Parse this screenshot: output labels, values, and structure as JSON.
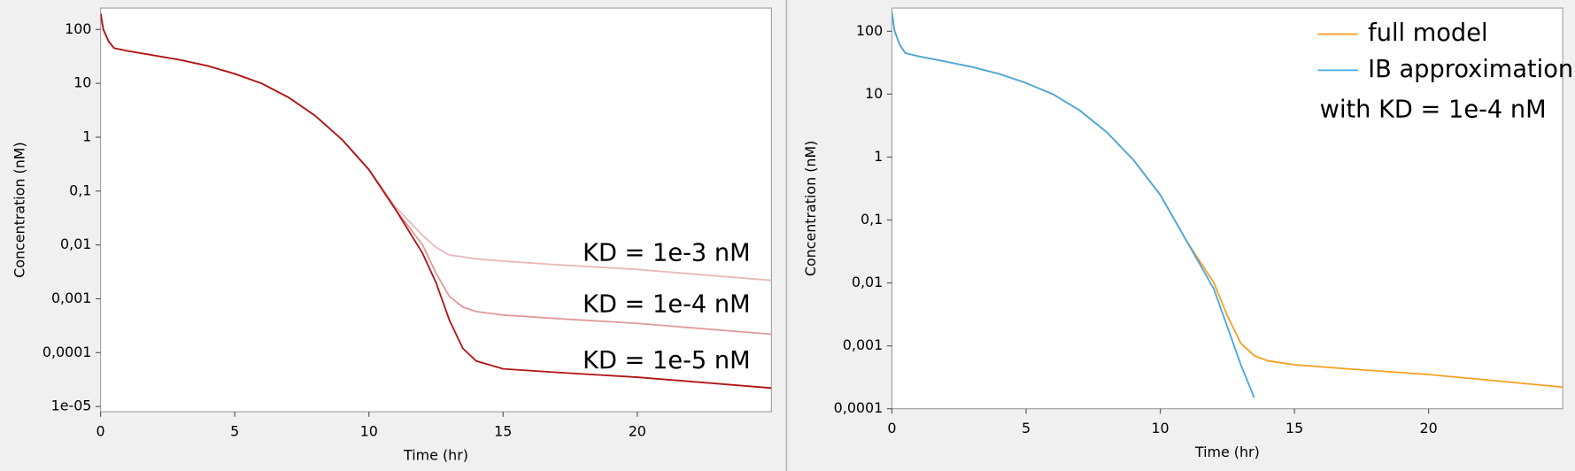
{
  "chart_data": [
    {
      "type": "line",
      "log_y": true,
      "xlabel": "Time (hr)",
      "ylabel": "Concentration (nM)",
      "x": [
        0,
        0.1,
        0.3,
        0.5,
        1,
        2,
        3,
        4,
        5,
        6,
        7,
        8,
        9,
        10,
        11,
        12,
        12.5,
        13,
        13.5,
        14,
        15,
        17,
        20,
        25
      ],
      "series": [
        {
          "name": "KD = 1e-3 nM",
          "color": "#e8b8b8",
          "values": [
            200,
            100,
            60,
            45,
            40,
            33,
            27,
            21,
            15,
            10,
            5.5,
            2.5,
            0.9,
            0.25,
            0.05,
            0.015,
            0.009,
            0.0065,
            0.006,
            0.0055,
            0.005,
            0.0043,
            0.0035,
            0.0022
          ]
        },
        {
          "name": "KD = 1e-4 nM",
          "color": "#e09a9a",
          "values": [
            200,
            100,
            60,
            45,
            40,
            33,
            27,
            21,
            15,
            10,
            5.5,
            2.5,
            0.9,
            0.25,
            0.045,
            0.01,
            0.003,
            0.0011,
            0.0007,
            0.00058,
            0.0005,
            0.00043,
            0.00035,
            0.00022
          ]
        },
        {
          "name": "KD = 1e-5 nM",
          "color": "#b01414",
          "values": [
            200,
            100,
            60,
            45,
            40,
            33,
            27,
            21,
            15,
            10,
            5.5,
            2.5,
            0.9,
            0.25,
            0.045,
            0.007,
            0.002,
            0.0004,
            0.00012,
            7e-05,
            5e-05,
            4.3e-05,
            3.5e-05,
            2.2e-05
          ]
        }
      ],
      "xlim": [
        0,
        25
      ],
      "xticks": [
        0,
        5,
        10,
        15,
        20
      ],
      "ylim": [
        8e-06,
        250
      ],
      "yticks": [
        100,
        10,
        1,
        {
          "value": 0.1,
          "label": "0,1"
        },
        {
          "value": 0.01,
          "label": "0,01"
        },
        {
          "value": 0.001,
          "label": "0,001"
        },
        {
          "value": 0.0001,
          "label": "0,0001"
        },
        {
          "value": 1e-05,
          "label": "1e-05"
        }
      ]
    },
    {
      "type": "line",
      "log_y": true,
      "xlabel": "Time (hr)",
      "ylabel": "Concentration (nM)",
      "annotation": "with KD = 1e-4 nM",
      "legend": "upper right",
      "x": [
        0,
        0.1,
        0.3,
        0.5,
        1,
        2,
        3,
        4,
        5,
        6,
        7,
        8,
        9,
        10,
        11,
        12,
        12.5,
        13,
        13.5,
        14,
        15,
        17,
        20,
        25
      ],
      "series": [
        {
          "name": "full model",
          "color": "#f5a020",
          "values": [
            200,
            100,
            60,
            45,
            40,
            33,
            27,
            21,
            15,
            10,
            5.5,
            2.5,
            0.9,
            0.25,
            0.045,
            0.01,
            0.003,
            0.0011,
            0.0007,
            0.00058,
            0.0005,
            0.00043,
            0.00035,
            0.00022
          ]
        },
        {
          "name": "IB approximation",
          "color": "#45a8e0",
          "values": [
            200,
            100,
            60,
            45,
            40,
            33,
            27,
            21,
            15,
            10,
            5.5,
            2.5,
            0.9,
            0.25,
            0.045,
            0.008,
            0.002,
            0.0005,
            0.00015,
            null,
            null,
            null,
            null,
            null
          ]
        }
      ],
      "xlim": [
        0,
        25
      ],
      "xticks": [
        0,
        5,
        10,
        15,
        20
      ],
      "ylim": [
        0.0001,
        234
      ],
      "yticks": [
        100,
        10,
        1,
        {
          "value": 0.1,
          "label": "0,1"
        },
        {
          "value": 0.01,
          "label": "0,01"
        },
        {
          "value": 0.001,
          "label": "0,001"
        },
        {
          "value": 0.0001,
          "label": "0,0001"
        }
      ]
    }
  ]
}
